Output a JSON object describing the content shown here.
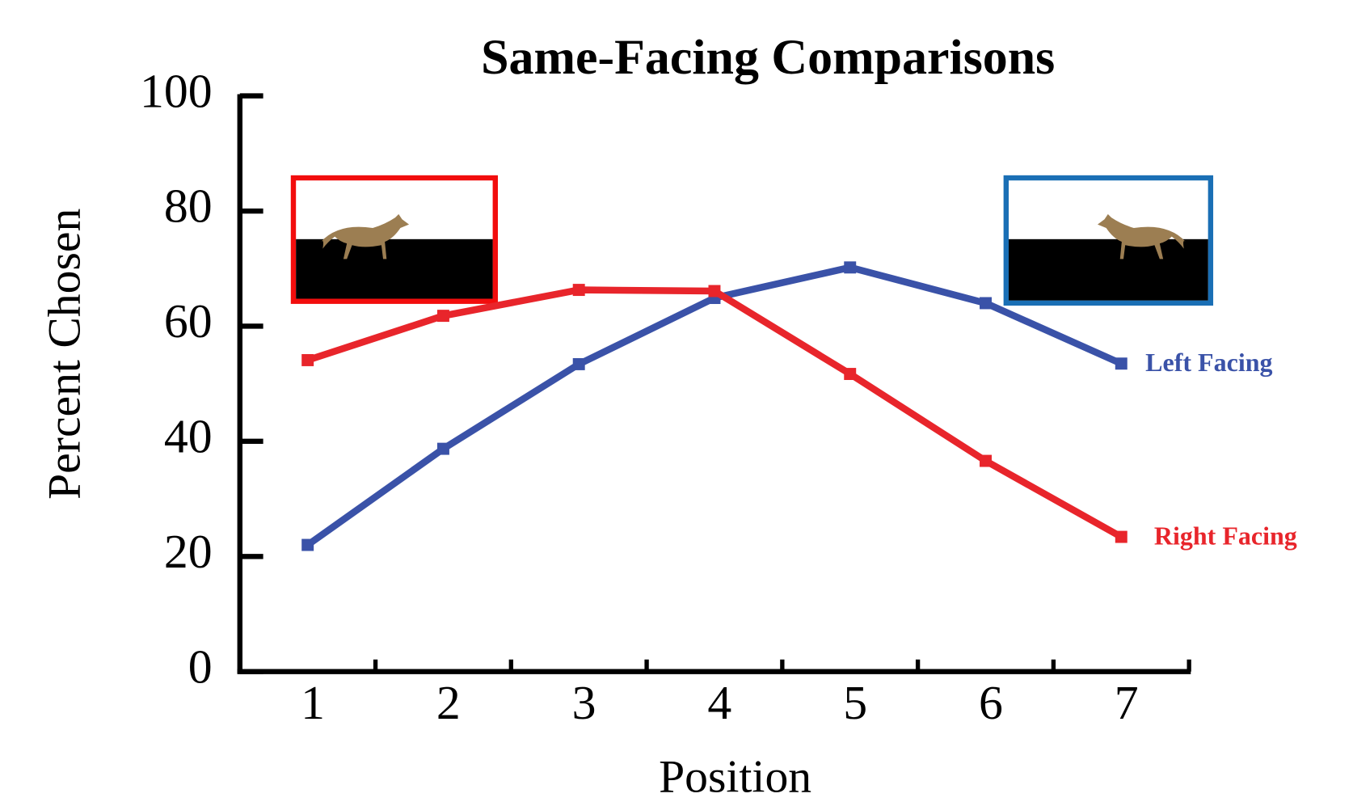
{
  "chart_data": {
    "type": "line",
    "title": "Same-Facing Comparisons",
    "x_label": "Position",
    "y_label": "Percent Chosen",
    "categories": [
      "1",
      "2",
      "3",
      "4",
      "5",
      "6",
      "7"
    ],
    "series": [
      {
        "name": "Left Facing",
        "color": "#3a52a8",
        "values": [
          22.0,
          38.7,
          53.4,
          64.9,
          70.2,
          64.0,
          53.5
        ]
      },
      {
        "name": "Right Facing",
        "color": "#e8252b",
        "values": [
          54.1,
          61.8,
          66.3,
          66.1,
          51.7,
          36.6,
          23.4
        ]
      }
    ],
    "ylim": [
      0,
      100
    ],
    "yticks": [
      0,
      20,
      40,
      60,
      80,
      100
    ],
    "grid": false
  }
}
